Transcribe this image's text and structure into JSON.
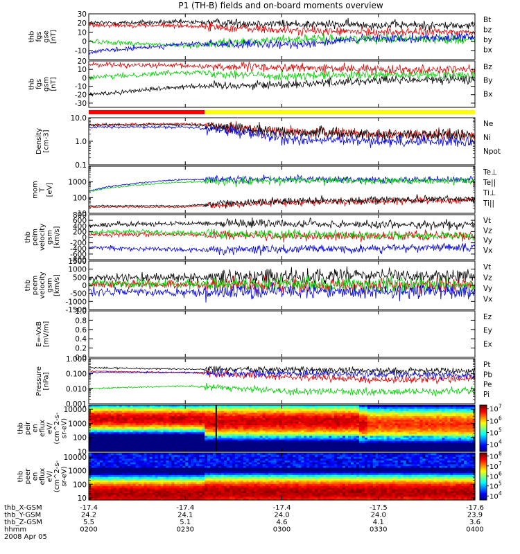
{
  "title": "P1 (TH-B) fields and on-board moments overview",
  "panels": [
    {
      "id": "fgs-gse",
      "ylabel": [
        "thb",
        "fgs",
        "gse",
        "[nT]"
      ],
      "yrange": [
        -20,
        30
      ],
      "yscale": "linear",
      "ticks": [
        {
          "v": -10,
          "label": "-10"
        },
        {
          "v": 0,
          "label": "0"
        },
        {
          "v": 10,
          "label": "10"
        },
        {
          "v": 20,
          "label": "20"
        },
        {
          "v": 30,
          "label": "30"
        }
      ],
      "legend": [
        {
          "label": "Bt",
          "color": "#000000"
        },
        {
          "label": "bz",
          "color": "#dd0000"
        },
        {
          "label": "by",
          "color": "#00cc00"
        },
        {
          "label": "bx",
          "color": "#0000dd"
        }
      ]
    },
    {
      "id": "fgs-gsm",
      "ylabel": [
        "thb",
        "fgs",
        "gsm",
        "[nT]"
      ],
      "yrange": [
        -35,
        20
      ],
      "yscale": "linear",
      "ticks": [
        {
          "v": -30,
          "label": "-30"
        },
        {
          "v": -20,
          "label": "-20"
        },
        {
          "v": -10,
          "label": "-10"
        },
        {
          "v": 0,
          "label": "0"
        },
        {
          "v": 10,
          "label": "10"
        },
        {
          "v": 20,
          "label": "20"
        }
      ],
      "legend": [
        {
          "label": "Bz",
          "color": "#dd0000"
        },
        {
          "label": "By",
          "color": "#00cc00"
        },
        {
          "label": "Bx",
          "color": "#000000"
        }
      ]
    },
    {
      "id": "density",
      "ylabel": [
        "Density",
        "[cm-3]"
      ],
      "yrange": [
        0.1,
        10
      ],
      "yscale": "log",
      "ticks": [
        {
          "v": 0.1,
          "label": "0.1"
        },
        {
          "v": 1,
          "label": "1.0"
        },
        {
          "v": 10,
          "label": "10.0"
        }
      ],
      "legend": [
        {
          "label": "Ne",
          "color": "#dd0000"
        },
        {
          "label": "Ni",
          "color": "#000000"
        },
        {
          "label": "Npot",
          "color": "#0000dd"
        }
      ]
    },
    {
      "id": "temperature",
      "ylabel": [
        "mom",
        "T",
        "[eV]"
      ],
      "yrange": [
        10,
        10000
      ],
      "yscale": "log",
      "ticks": [
        {
          "v": 10,
          "label": "10"
        },
        {
          "v": 100,
          "label": "100"
        },
        {
          "v": 1000,
          "label": "1000"
        }
      ],
      "legend": [
        {
          "label": "Te⊥",
          "color": "#dd0000"
        },
        {
          "label": "Te||",
          "color": "#000000"
        },
        {
          "label": "Ti⊥",
          "color": "#0000dd"
        },
        {
          "label": "Ti||",
          "color": "#00cc00"
        }
      ]
    },
    {
      "id": "peim-velocity",
      "ylabel": [
        "thb",
        "peim",
        "velocity",
        "gsm",
        "[km/s]"
      ],
      "yrange": [
        -800,
        800
      ],
      "yscale": "linear",
      "ticks": [
        {
          "v": -800,
          "label": "-800"
        },
        {
          "v": -600,
          "label": "-600"
        },
        {
          "v": -400,
          "label": "-400"
        },
        {
          "v": -200,
          "label": "-200"
        },
        {
          "v": 0,
          "label": "0"
        },
        {
          "v": 200,
          "label": "200"
        },
        {
          "v": 400,
          "label": "400"
        },
        {
          "v": 600,
          "label": "600"
        },
        {
          "v": 800,
          "label": "800"
        }
      ],
      "legend": [
        {
          "label": "Vt",
          "color": "#000000"
        },
        {
          "label": "Vz",
          "color": "#dd0000"
        },
        {
          "label": "Vy",
          "color": "#00cc00"
        },
        {
          "label": "Vx",
          "color": "#0000dd"
        }
      ]
    },
    {
      "id": "peem-velocity",
      "ylabel": [
        "thb",
        "peem",
        "velocity",
        "gsm",
        "[km/s]"
      ],
      "yrange": [
        -1500,
        1500
      ],
      "yscale": "linear",
      "ticks": [
        {
          "v": -1500,
          "label": "-1500"
        },
        {
          "v": -1000,
          "label": "-1000"
        },
        {
          "v": -500,
          "label": "-500"
        },
        {
          "v": 0,
          "label": "0"
        },
        {
          "v": 500,
          "label": "500"
        },
        {
          "v": 1000,
          "label": "1000"
        },
        {
          "v": 1500,
          "label": "1500"
        }
      ],
      "legend": [
        {
          "label": "Vt",
          "color": "#000000"
        },
        {
          "label": "Vz",
          "color": "#dd0000"
        },
        {
          "label": "Vy",
          "color": "#00cc00"
        },
        {
          "label": "Vx",
          "color": "#0000dd"
        }
      ]
    },
    {
      "id": "efield",
      "ylabel": [
        "E=-VxB",
        "[mV/m]"
      ],
      "yrange": [
        0,
        1
      ],
      "yscale": "linear",
      "ticks": [
        {
          "v": 0,
          "label": "0.0"
        },
        {
          "v": 0.2,
          "label": "0.2"
        },
        {
          "v": 0.4,
          "label": "0.4"
        },
        {
          "v": 0.6,
          "label": "0.6"
        },
        {
          "v": 0.8,
          "label": "0.8"
        },
        {
          "v": 1,
          "label": "1.0"
        }
      ],
      "legend": [
        {
          "label": "Ez",
          "color": "#dd0000"
        },
        {
          "label": "Ey",
          "color": "#00cc00"
        },
        {
          "label": "Ex",
          "color": "#0000dd"
        }
      ]
    },
    {
      "id": "pressure",
      "ylabel": [
        "Pressure",
        "[nPa]"
      ],
      "yrange": [
        0.001,
        1
      ],
      "yscale": "log",
      "ticks": [
        {
          "v": 0.001,
          "label": "0.001"
        },
        {
          "v": 0.01,
          "label": "0.010"
        },
        {
          "v": 0.1,
          "label": "0.100"
        },
        {
          "v": 1,
          "label": "1.000"
        }
      ],
      "legend": [
        {
          "label": "Pt",
          "color": "#000000"
        },
        {
          "label": "Pb",
          "color": "#dd0000"
        },
        {
          "label": "Pe",
          "color": "#00cc00"
        },
        {
          "label": "Pi",
          "color": "#0000dd"
        }
      ]
    },
    {
      "id": "peir-spec",
      "ylabel": [
        "thb",
        "peir",
        "en",
        "eflux",
        "eV/",
        "(cm^2-s-",
        "sr-eV)"
      ],
      "yrange": [
        10,
        20000
      ],
      "yscale": "log",
      "ticks": [
        {
          "v": 10,
          "label": "10"
        },
        {
          "v": 100,
          "label": "100"
        },
        {
          "v": 1000,
          "label": "1000"
        },
        {
          "v": 10000,
          "label": "10000"
        }
      ],
      "colorbar": [
        {
          "v": 4,
          "label": "10"
        },
        {
          "v": 5,
          "label": "10"
        },
        {
          "v": 6,
          "label": "10"
        },
        {
          "v": 7,
          "label": "10"
        }
      ],
      "colorbar_exp": [
        "4",
        "5",
        "6",
        "7"
      ],
      "colorbar_range": [
        3.4,
        7.3
      ]
    },
    {
      "id": "peer-spec",
      "ylabel": [
        "thb",
        "peer",
        "en",
        "eflux",
        "eV/",
        "(cm^2-s-",
        "sr-eV)"
      ],
      "yrange": [
        7,
        20000
      ],
      "yscale": "log",
      "ticks": [
        {
          "v": 10,
          "label": "10"
        },
        {
          "v": 100,
          "label": "100"
        },
        {
          "v": 1000,
          "label": "1000"
        },
        {
          "v": 10000,
          "label": "10000"
        }
      ],
      "colorbar": [
        {
          "v": 4,
          "label": "10"
        },
        {
          "v": 5,
          "label": "10"
        },
        {
          "v": 6,
          "label": "10"
        },
        {
          "v": 7,
          "label": "10"
        },
        {
          "v": 8,
          "label": "10"
        }
      ],
      "colorbar_exp": [
        "4",
        "5",
        "6",
        "7",
        "8"
      ],
      "colorbar_range": [
        3.6,
        8.3
      ]
    }
  ],
  "mode_bar": {
    "segments": [
      {
        "from": 0,
        "to": 0.3,
        "color": "#ff0000"
      },
      {
        "from": 0.3,
        "to": 1,
        "color": "#ffff00"
      }
    ]
  },
  "xaxis": {
    "rows": [
      {
        "label": "thb_X-GSM",
        "values": [
          "-17.4",
          "-17.4",
          "-17.4",
          "-17.5",
          "-17.6"
        ]
      },
      {
        "label": "thb_Y-GSM",
        "values": [
          "24.2",
          "24.1",
          "24.0",
          "24.0",
          "23.9"
        ]
      },
      {
        "label": "thb_Z-GSM",
        "values": [
          "5.5",
          "5.1",
          "4.6",
          "4.1",
          "3.6"
        ]
      },
      {
        "label": "hhmm",
        "values": [
          "0200",
          "0230",
          "0300",
          "0330",
          "0400"
        ]
      }
    ],
    "date": "2008 Apr 05"
  },
  "chart_data": [
    {
      "type": "line",
      "title": "P1 (TH-B) fields and on-board moments overview",
      "ylabel": "thb fgs gse [nT]",
      "ylim": [
        -20,
        30
      ],
      "x": [
        "0200",
        "0230",
        "0300",
        "0330",
        "0400"
      ],
      "series": [
        {
          "name": "Bt",
          "values": [
            20,
            21,
            19,
            18,
            17
          ]
        },
        {
          "name": "bz",
          "values": [
            18,
            17,
            12,
            10,
            10
          ]
        },
        {
          "name": "by",
          "values": [
            0,
            -5,
            2,
            3,
            2
          ]
        },
        {
          "name": "bx",
          "values": [
            -12,
            -3,
            -4,
            3,
            4
          ]
        }
      ]
    },
    {
      "type": "line",
      "ylabel": "thb fgs gsm [nT]",
      "ylim": [
        -35,
        20
      ],
      "x": [
        "0200",
        "0230",
        "0300",
        "0330",
        "0400"
      ],
      "series": [
        {
          "name": "Bz",
          "values": [
            16,
            14,
            12,
            10,
            10
          ]
        },
        {
          "name": "By",
          "values": [
            0,
            7,
            2,
            3,
            3
          ]
        },
        {
          "name": "Bx",
          "values": [
            -20,
            -10,
            -8,
            -3,
            -2
          ]
        }
      ]
    },
    {
      "type": "line",
      "ylabel": "Density [cm-3]",
      "ylim": [
        0.1,
        10
      ],
      "x": [
        "0200",
        "0230",
        "0300",
        "0330",
        "0400"
      ],
      "series": [
        {
          "name": "Ne",
          "values": [
            5,
            5.5,
            2.5,
            2,
            1.8
          ]
        },
        {
          "name": "Ni",
          "values": [
            5,
            5,
            2.5,
            2,
            1.8
          ]
        },
        {
          "name": "Npot",
          "values": [
            4,
            4,
            1.2,
            1,
            1
          ]
        }
      ]
    },
    {
      "type": "line",
      "ylabel": "mom T [eV]",
      "ylim": [
        10,
        10000
      ],
      "x": [
        "0200",
        "0230",
        "0300",
        "0330",
        "0400"
      ],
      "series": [
        {
          "name": "Te⊥",
          "values": [
            25,
            25,
            50,
            60,
            70
          ]
        },
        {
          "name": "Te||",
          "values": [
            30,
            30,
            60,
            70,
            80
          ]
        },
        {
          "name": "Ti⊥",
          "values": [
            250,
            1400,
            1500,
            1300,
            1400
          ]
        },
        {
          "name": "Ti||",
          "values": [
            240,
            1000,
            1200,
            1100,
            1200
          ]
        }
      ]
    },
    {
      "type": "line",
      "ylabel": "thb peim velocity gsm [km/s]",
      "ylim": [
        -800,
        800
      ],
      "x": [
        "0200",
        "0230",
        "0300",
        "0330",
        "0400"
      ],
      "series": [
        {
          "name": "Vt",
          "values": [
            430,
            500,
            480,
            450,
            420
          ]
        },
        {
          "name": "Vz",
          "values": [
            100,
            100,
            30,
            50,
            50
          ]
        },
        {
          "name": "Vy",
          "values": [
            200,
            150,
            100,
            70,
            40
          ]
        },
        {
          "name": "Vx",
          "values": [
            -360,
            -450,
            -430,
            -400,
            -380
          ]
        }
      ]
    },
    {
      "type": "line",
      "ylabel": "thb peem velocity gsm [km/s]",
      "ylim": [
        -1500,
        1500
      ],
      "x": [
        "0200",
        "0230",
        "0300",
        "0330",
        "0400"
      ],
      "series": [
        {
          "name": "Vt",
          "values": [
            450,
            500,
            500,
            600,
            600
          ]
        },
        {
          "name": "Vz",
          "values": [
            50,
            50,
            0,
            0,
            0
          ]
        },
        {
          "name": "Vy",
          "values": [
            100,
            100,
            50,
            0,
            0
          ]
        },
        {
          "name": "Vx",
          "values": [
            -400,
            -450,
            -400,
            -400,
            -380
          ]
        }
      ]
    },
    {
      "type": "line",
      "ylabel": "E=-VxB [mV/m]",
      "ylim": [
        0,
        1
      ],
      "x": [],
      "series": []
    },
    {
      "type": "line",
      "ylabel": "Pressure [nPa]",
      "ylim": [
        0.001,
        1
      ],
      "x": [
        "0200",
        "0230",
        "0300",
        "0330",
        "0400"
      ],
      "series": [
        {
          "name": "Pt",
          "values": [
            0.25,
            0.2,
            0.18,
            0.16,
            0.15
          ]
        },
        {
          "name": "Pb",
          "values": [
            0.15,
            0.12,
            0.06,
            0.04,
            0.05
          ]
        },
        {
          "name": "Pe",
          "values": [
            0.01,
            0.015,
            0.007,
            0.006,
            0.007
          ]
        },
        {
          "name": "Pi",
          "values": [
            0.12,
            0.12,
            0.1,
            0.09,
            0.08
          ]
        }
      ]
    },
    {
      "type": "heatmap",
      "ylabel": "thb peir en eflux eV/(cm^2-s-sr-eV)",
      "ylim": [
        10,
        20000
      ],
      "x": [
        "0200",
        "0230",
        "0300",
        "0330",
        "0400"
      ]
    },
    {
      "type": "heatmap",
      "ylabel": "thb peer en eflux eV/(cm^2-s-sr-eV)",
      "ylim": [
        7,
        20000
      ],
      "x": [
        "0200",
        "0230",
        "0300",
        "0330",
        "0400"
      ]
    }
  ]
}
